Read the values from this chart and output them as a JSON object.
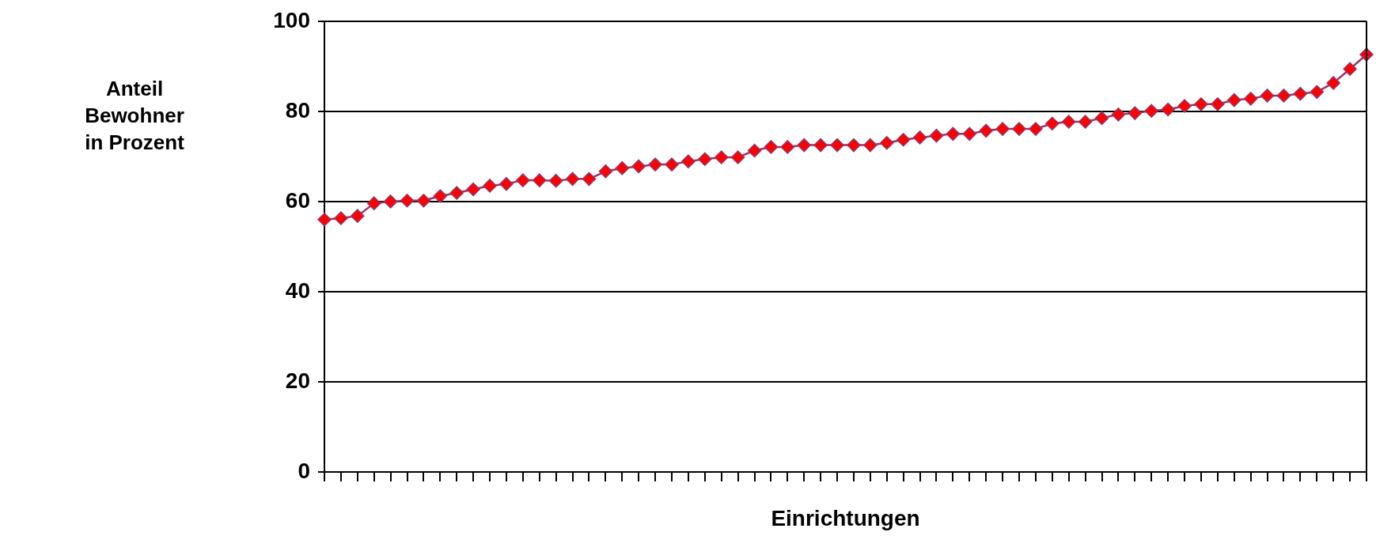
{
  "chart_data": {
    "type": "line",
    "ylabel": "Anteil Bewohner in Prozent",
    "xlabel": "Einrichtungen",
    "categories": [
      null,
      null,
      null,
      null,
      null,
      null,
      null,
      null,
      null,
      null,
      null,
      null,
      null,
      null,
      null,
      null,
      null,
      null,
      null,
      null,
      null,
      null,
      null,
      null,
      null,
      null,
      null,
      null,
      null,
      null,
      null,
      null,
      null,
      null,
      null,
      null,
      null,
      null,
      null,
      null,
      null,
      null,
      null,
      null,
      null,
      null,
      null,
      null,
      null,
      null,
      null,
      null,
      null,
      null,
      null,
      null,
      null,
      null,
      null,
      null,
      null,
      null,
      null,
      null
    ],
    "series": [
      {
        "color": "#993366",
        "colors": [
          "#ff0000",
          "#ff0000",
          "#ff0000",
          "#ff0000",
          "#ff0000",
          "#ff0000",
          "#ff0000",
          "#ff0000",
          "#ff0000",
          "#ff0000",
          "#ff0000",
          "#ff0000",
          "#ff0000",
          "#ff0000",
          "#ff0000",
          "#ff0000",
          "#ff0000",
          "#ff0000",
          "#ff0000",
          "#ff0000",
          "#ff0000",
          "#ff0000",
          "#ff0000",
          "#ff0000",
          "#ff0000",
          "#ff0000",
          "#ff0000",
          "#ff0000",
          "#ff0000",
          "#ff0000",
          "#ff0000",
          "#ff0000",
          "#ff0000",
          "#ff0000",
          "#ff0000",
          "#ff0000",
          "#ff0000",
          "#ff0000",
          "#ff0000",
          "#ff0000",
          "#ff0000",
          "#ff0000",
          "#ff0000",
          "#ff0000",
          "#ff0000",
          "#ff0000",
          "#ff0000",
          "#ff0000",
          "#ff0000",
          "#ff0000",
          "#ff0000",
          "#ff0000",
          "#ff0000",
          "#ff0000",
          "#ff0000",
          "#ff0000",
          "#ff0000",
          "#ff0000",
          "#ff0000",
          "#ff0000",
          "#ff0000",
          "#ff0000",
          "#ff0000",
          "#ff0000"
        ],
        "values": [
          56.0,
          56.3,
          56.8,
          59.6,
          60.0,
          60.2,
          60.2,
          61.2,
          61.9,
          62.7,
          63.5,
          63.9,
          64.7,
          64.7,
          64.6,
          65.0,
          65.0,
          66.7,
          67.4,
          67.8,
          68.2,
          68.2,
          68.9,
          69.4,
          69.8,
          69.8,
          71.3,
          72.1,
          72.1,
          72.5,
          72.5,
          72.5,
          72.5,
          72.5,
          73.0,
          73.7,
          74.2,
          74.6,
          75.0,
          75.0,
          75.7,
          76.1,
          76.1,
          76.1,
          77.3,
          77.7,
          77.7,
          78.5,
          79.3,
          79.6,
          80.1,
          80.4,
          81.2,
          81.6,
          81.6,
          82.5,
          82.8,
          83.5,
          83.5,
          83.9,
          84.3,
          86.3,
          89.4,
          92.6
        ]
      }
    ],
    "ylim": [
      0,
      100
    ],
    "yticks": [
      0,
      20,
      40,
      60,
      80,
      100
    ],
    "grid": "y",
    "legend": false,
    "tick_labels": "y",
    "marker": "diamond",
    "line_style": "solid"
  }
}
